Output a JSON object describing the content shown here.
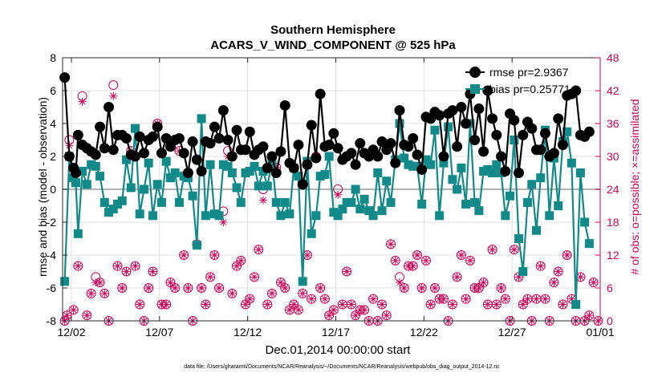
{
  "chart_data": {
    "type": "line",
    "title": "Southern Hemisphere",
    "subtitle": "ACARS_V_WIND_COMPONENT @ 525 hPa",
    "xlabel": "Dec.01,2014 00:00:00 start",
    "ylabel": "rmse and bias (model - observation)",
    "y2label": "# of obs: o=possible; ×=assimilated",
    "footnote": "data file: /Users/gharamti/Documents/NCAR/Reanalysis/~/Documents/NCAR/Reanalysis/webpub/obs_diag_output_2014-12.nc",
    "xlim": [
      1.5,
      32.0
    ],
    "ylim": [
      -8,
      8
    ],
    "y2lim": [
      0,
      48
    ],
    "x_ticks": [
      2,
      7,
      12,
      17,
      22,
      27,
      32
    ],
    "x_tick_labels": [
      "12/02",
      "12/07",
      "12/12",
      "12/17",
      "12/22",
      "12/27",
      "01/01"
    ],
    "y_ticks": [
      -8,
      -6,
      -4,
      -2,
      0,
      2,
      4,
      6,
      8
    ],
    "y2_ticks": [
      0,
      6,
      12,
      18,
      24,
      30,
      36,
      42,
      48
    ],
    "legend": [
      "rmse pr=2.9367",
      "bias pr=0.25771"
    ],
    "colors": {
      "rmse": "#000000",
      "bias": "#128a8a",
      "obs": "#cc0055",
      "zero": "#b3b3b3"
    },
    "series": [
      {
        "name": "rmse",
        "x": [
          1.62,
          1.88,
          2.12,
          2.25,
          2.38,
          2.62,
          2.88,
          3.12,
          3.38,
          3.62,
          3.88,
          4.12,
          4.38,
          4.62,
          4.88,
          5.12,
          5.38,
          5.62,
          5.88,
          6.12,
          6.38,
          6.62,
          6.88,
          7.12,
          7.38,
          7.62,
          7.88,
          8.12,
          8.38,
          8.62,
          8.88,
          9.12,
          9.38,
          9.62,
          9.88,
          10.12,
          10.38,
          10.62,
          10.88,
          11.12,
          11.38,
          11.62,
          11.88,
          12.12,
          12.38,
          12.62,
          12.88,
          13.12,
          13.38,
          13.62,
          13.88,
          14.12,
          14.38,
          14.62,
          14.88,
          15.12,
          15.38,
          15.62,
          15.88,
          16.12,
          16.38,
          16.62,
          16.88,
          17.12,
          17.38,
          17.62,
          17.88,
          18.12,
          18.38,
          18.62,
          18.88,
          19.12,
          19.38,
          19.62,
          19.88,
          20.12,
          20.38,
          20.62,
          20.88,
          21.12,
          21.38,
          21.62,
          21.88,
          22.12,
          22.38,
          22.62,
          22.88,
          23.12,
          23.38,
          23.62,
          23.88,
          24.12,
          24.38,
          24.62,
          24.88,
          25.12,
          25.38,
          25.62,
          25.88,
          26.12,
          26.38,
          26.62,
          26.88,
          27.12,
          27.38,
          27.62,
          27.88,
          28.12,
          28.38,
          28.62,
          28.88,
          29.12,
          29.38,
          29.62,
          29.88,
          30.12,
          30.38,
          30.62,
          30.88,
          31.12,
          31.38
        ],
        "values": [
          6.8,
          2.0,
          1.3,
          1.0,
          3.3,
          2.7,
          2.5,
          2.3,
          2.1,
          3.8,
          2.5,
          5.0,
          2.4,
          3.3,
          3.3,
          3.1,
          2.1,
          2.0,
          3.2,
          2.2,
          3.0,
          3.2,
          3.8,
          2.2,
          3.1,
          2.6,
          3.0,
          3.1,
          2.2,
          1.0,
          2.9,
          1.8,
          1.1,
          2.9,
          2.8,
          3.8,
          3.1,
          4.8,
          3.0,
          2.0,
          3.6,
          2.4,
          2.4,
          3.5,
          2.1,
          2.4,
          2.6,
          1.3,
          2.0,
          1.0,
          2.3,
          5.1,
          1.6,
          1.3,
          2.7,
          0.3,
          1.5,
          3.9,
          1.9,
          5.8,
          2.6,
          2.7,
          3.4,
          2.5,
          1.8,
          2.0,
          2.2,
          1.5,
          2.8,
          2.2,
          2.0,
          2.4,
          2.0,
          2.9,
          2.4,
          2.8,
          1.6,
          4.8,
          2.7,
          2.6,
          3.1,
          2.1,
          1.2,
          4.4,
          4.3,
          4.7,
          4.5,
          2.0,
          4.6,
          4.8,
          2.6,
          5.0,
          4.0,
          5.8,
          3.0,
          4.9,
          2.3,
          6.0,
          4.3,
          3.3,
          2.0,
          1.1,
          4.6,
          4.2,
          1.0,
          3.3,
          4.1,
          3.7,
          2.4,
          2.4,
          3.4,
          2.0,
          2.2,
          4.3,
          2.7,
          5.7,
          5.8,
          6.0,
          3.3,
          3.2,
          3.5
        ]
      },
      {
        "name": "bias",
        "x": [
          1.62,
          1.88,
          2.12,
          2.25,
          2.38,
          2.62,
          2.88,
          3.12,
          3.38,
          3.62,
          3.88,
          4.12,
          4.38,
          4.62,
          4.88,
          5.12,
          5.38,
          5.62,
          5.88,
          6.12,
          6.38,
          6.62,
          6.88,
          7.12,
          7.38,
          7.62,
          7.88,
          8.12,
          8.38,
          8.62,
          8.88,
          9.12,
          9.38,
          9.62,
          9.88,
          10.12,
          10.38,
          10.62,
          10.88,
          11.12,
          11.38,
          11.62,
          11.88,
          12.12,
          12.38,
          12.62,
          12.88,
          13.12,
          13.38,
          13.62,
          13.88,
          14.12,
          14.38,
          14.62,
          14.88,
          15.12,
          15.38,
          15.62,
          15.88,
          16.12,
          16.38,
          16.62,
          16.88,
          17.12,
          17.38,
          17.62,
          17.88,
          18.12,
          18.38,
          18.62,
          18.88,
          19.12,
          19.38,
          19.62,
          19.88,
          20.12,
          20.38,
          20.62,
          20.88,
          21.12,
          21.38,
          21.62,
          21.88,
          22.12,
          22.38,
          22.62,
          22.88,
          23.12,
          23.38,
          23.62,
          23.88,
          24.12,
          24.38,
          24.62,
          24.88,
          25.12,
          25.38,
          25.62,
          25.88,
          26.12,
          26.38,
          26.62,
          26.88,
          27.12,
          27.38,
          27.62,
          27.88,
          28.12,
          28.38,
          28.62,
          28.88,
          29.12,
          29.38,
          29.62,
          29.88,
          30.12,
          30.38,
          30.62,
          30.88,
          31.12,
          31.38
        ],
        "values": [
          -5.6,
          2.0,
          0.7,
          0.4,
          -2.7,
          1.1,
          0.3,
          1.5,
          1.4,
          0.8,
          -0.8,
          -1.4,
          -1.2,
          -0.9,
          -0.7,
          1.8,
          0.1,
          3.7,
          -1.5,
          0.0,
          1.6,
          -1.6,
          0.3,
          -0.8,
          1.7,
          0.7,
          1.0,
          -0.8,
          0.8,
          0.7,
          -0.4,
          -3.4,
          4.3,
          -1.6,
          1.5,
          -1.5,
          -1.6,
          1.5,
          1.4,
          1.0,
          0.1,
          -0.8,
          1.0,
          1.1,
          1.4,
          0.2,
          1.1,
          0.2,
          1.7,
          -0.8,
          -1.6,
          -0.8,
          -1.5,
          1.3,
          0.8,
          -5.6,
          1.7,
          -2.7,
          -1.6,
          0.8,
          0.9,
          2.0,
          -1.4,
          -1.6,
          -1.2,
          -0.8,
          -0.8,
          0.0,
          -1.2,
          -0.6,
          -1.3,
          -1.6,
          1.0,
          -1.3,
          0.5,
          -0.8,
          1.8,
          4.0,
          1.9,
          1.5,
          1.4,
          1.4,
          -0.9,
          1.8,
          1.5,
          3.6,
          -1.6,
          1.6,
          3.8,
          0.6,
          0.0,
          1.3,
          -0.9,
          4.0,
          -0.8,
          -1.3,
          1.1,
          1.2,
          1.0,
          1.5,
          1.0,
          -1.6,
          -0.4,
          3.0,
          -3.0,
          -5.0,
          -0.8,
          0.3,
          -2.5,
          0.7,
          3.6,
          -1.6,
          1.9,
          -1.0,
          2.9,
          3.5,
          1.6,
          -7.0,
          1.0,
          -2.0,
          -3.3
        ]
      },
      {
        "name": "obs_possible",
        "x": [
          1.62,
          1.75,
          1.88,
          2.12,
          2.38,
          2.62,
          2.88,
          3.12,
          3.38,
          3.62,
          3.88,
          4.12,
          4.38,
          4.62,
          4.88,
          5.12,
          5.38,
          5.62,
          5.88,
          6.12,
          6.38,
          6.62,
          6.88,
          7.12,
          7.38,
          7.62,
          7.88,
          8.12,
          8.38,
          8.62,
          8.88,
          9.12,
          9.38,
          9.62,
          9.88,
          10.12,
          10.38,
          10.62,
          10.88,
          11.12,
          11.38,
          11.62,
          11.88,
          12.12,
          12.38,
          12.62,
          12.88,
          13.12,
          13.38,
          13.62,
          13.88,
          14.12,
          14.38,
          14.62,
          14.88,
          15.12,
          15.38,
          15.62,
          15.88,
          16.12,
          16.38,
          16.62,
          16.88,
          17.12,
          17.38,
          17.62,
          17.88,
          18.12,
          18.38,
          18.62,
          18.88,
          19.12,
          19.38,
          19.62,
          19.88,
          20.12,
          20.38,
          20.62,
          20.88,
          21.12,
          21.38,
          21.62,
          21.88,
          22.12,
          22.38,
          22.62,
          22.88,
          23.12,
          23.38,
          23.62,
          23.88,
          24.12,
          24.38,
          24.62,
          24.88,
          25.12,
          25.38,
          25.62,
          25.88,
          26.12,
          26.38,
          26.62,
          26.88,
          27.12,
          27.38,
          27.62,
          27.88,
          28.12,
          28.38,
          28.62,
          28.88,
          29.12,
          29.38,
          29.62,
          29.88,
          30.12,
          30.38,
          30.62,
          30.88,
          31.12,
          31.38,
          31.62,
          31.88
        ],
        "values": [
          0,
          1,
          33,
          2,
          10,
          41,
          1,
          5,
          8,
          7,
          5,
          0,
          43,
          10,
          6,
          9,
          31,
          10,
          3,
          0,
          6,
          9,
          36,
          3,
          3,
          7,
          6,
          31,
          12,
          6,
          0,
          14,
          6,
          3,
          8,
          12,
          6,
          20,
          31,
          5,
          10,
          11,
          3,
          4,
          8,
          13,
          24,
          3,
          5,
          28,
          7,
          6,
          2,
          3,
          2,
          5,
          12,
          4,
          30,
          6,
          4,
          1,
          2,
          24,
          3,
          9,
          3,
          1,
          2,
          2,
          0,
          4,
          0,
          3,
          1,
          14,
          11,
          8,
          6,
          10,
          10,
          12,
          6,
          11,
          3,
          6,
          4,
          4,
          0,
          3,
          8,
          12,
          4,
          11,
          6,
          6,
          7,
          3,
          13,
          3,
          6,
          4,
          0,
          13,
          8,
          3,
          4,
          0,
          4,
          10,
          4,
          0,
          7,
          9,
          3,
          12,
          4,
          0,
          8,
          0,
          1,
          7,
          0
        ]
      },
      {
        "name": "obs_assimilated",
        "x": [
          1.62,
          1.75,
          1.88,
          2.12,
          2.38,
          2.62,
          2.88,
          3.12,
          3.38,
          3.62,
          3.88,
          4.12,
          4.38,
          4.62,
          4.88,
          5.12,
          5.38,
          5.62,
          5.88,
          6.12,
          6.38,
          6.62,
          6.88,
          7.12,
          7.38,
          7.62,
          7.88,
          8.12,
          8.38,
          8.62,
          8.88,
          9.12,
          9.38,
          9.62,
          9.88,
          10.12,
          10.38,
          10.62,
          10.88,
          11.12,
          11.38,
          11.62,
          11.88,
          12.12,
          12.38,
          12.62,
          12.88,
          13.12,
          13.38,
          13.62,
          13.88,
          14.12,
          14.38,
          14.62,
          14.88,
          15.12,
          15.38,
          15.62,
          15.88,
          16.12,
          16.38,
          16.62,
          16.88,
          17.12,
          17.38,
          17.62,
          17.88,
          18.12,
          18.38,
          18.62,
          18.88,
          19.12,
          19.38,
          19.62,
          19.88,
          20.12,
          20.38,
          20.62,
          20.88,
          21.12,
          21.38,
          21.62,
          21.88,
          22.12,
          22.38,
          22.62,
          22.88,
          23.12,
          23.38,
          23.62,
          23.88,
          24.12,
          24.38,
          24.62,
          24.88,
          25.12,
          25.38,
          25.62,
          25.88,
          26.12,
          26.38,
          26.62,
          26.88,
          27.12,
          27.38,
          27.62,
          27.88,
          28.12,
          28.38,
          28.62,
          28.88,
          29.12,
          29.38,
          29.62,
          29.88,
          30.12,
          30.38,
          30.62,
          30.88,
          31.12,
          31.38,
          31.62,
          31.88
        ],
        "values": [
          0,
          1,
          32,
          2,
          10,
          40,
          1,
          5,
          7,
          7,
          5,
          0,
          41,
          10,
          6,
          9,
          31,
          10,
          3,
          0,
          6,
          9,
          36,
          3,
          3,
          7,
          6,
          31,
          12,
          6,
          0,
          14,
          6,
          3,
          8,
          12,
          6,
          18,
          30,
          5,
          10,
          11,
          3,
          4,
          8,
          13,
          22,
          3,
          5,
          28,
          7,
          6,
          2,
          3,
          2,
          5,
          12,
          4,
          30,
          6,
          4,
          1,
          2,
          23,
          3,
          9,
          3,
          1,
          2,
          2,
          0,
          4,
          0,
          3,
          1,
          14,
          11,
          7,
          6,
          10,
          10,
          12,
          6,
          11,
          3,
          6,
          4,
          4,
          0,
          3,
          8,
          12,
          4,
          11,
          6,
          6,
          7,
          3,
          13,
          3,
          6,
          4,
          0,
          13,
          8,
          3,
          4,
          0,
          4,
          10,
          4,
          0,
          7,
          9,
          3,
          12,
          4,
          0,
          8,
          0,
          1,
          7,
          0
        ]
      }
    ]
  }
}
